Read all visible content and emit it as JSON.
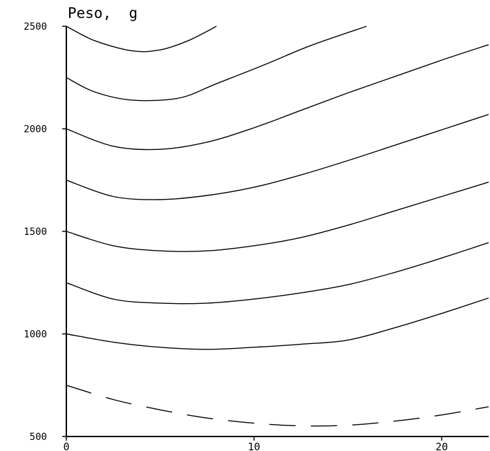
{
  "chart_data": {
    "type": "line",
    "title": "",
    "ylabel": "Peso,  g",
    "xlabel": "",
    "xlim": [
      0,
      22.5
    ],
    "ylim": [
      500,
      2500
    ],
    "x_ticks": [
      0,
      10,
      20
    ],
    "x_tick_labels": [
      "0",
      "10",
      "20"
    ],
    "y_ticks": [
      500,
      1000,
      1500,
      2000,
      2500
    ],
    "y_tick_labels": [
      "500",
      "1000",
      "1500",
      "2000",
      "2500"
    ],
    "grid": false,
    "legend": "none",
    "line_color": "#000000",
    "series": [
      {
        "style": "dashed",
        "points": [
          [
            0,
            750
          ],
          [
            2.5,
            680
          ],
          [
            5,
            630
          ],
          [
            7.5,
            590
          ],
          [
            10,
            565
          ],
          [
            12.5,
            552
          ],
          [
            15,
            555
          ],
          [
            17.5,
            575
          ],
          [
            20,
            605
          ],
          [
            22.5,
            645
          ]
        ]
      },
      {
        "style": "solid",
        "points": [
          [
            0,
            1000
          ],
          [
            2.5,
            960
          ],
          [
            5,
            935
          ],
          [
            7.5,
            925
          ],
          [
            10,
            935
          ],
          [
            12.5,
            950
          ],
          [
            15,
            970
          ],
          [
            17.5,
            1030
          ],
          [
            20,
            1100
          ],
          [
            22.5,
            1175
          ]
        ]
      },
      {
        "style": "solid",
        "points": [
          [
            0,
            1250
          ],
          [
            2.5,
            1170
          ],
          [
            5,
            1150
          ],
          [
            7.5,
            1150
          ],
          [
            10,
            1170
          ],
          [
            12.5,
            1200
          ],
          [
            15,
            1240
          ],
          [
            17.5,
            1300
          ],
          [
            20,
            1370
          ],
          [
            22.5,
            1445
          ]
        ]
      },
      {
        "style": "solid",
        "points": [
          [
            0,
            1500
          ],
          [
            2.5,
            1430
          ],
          [
            5,
            1405
          ],
          [
            7.5,
            1405
          ],
          [
            10,
            1430
          ],
          [
            12.5,
            1470
          ],
          [
            15,
            1530
          ],
          [
            17.5,
            1600
          ],
          [
            20,
            1670
          ],
          [
            22.5,
            1740
          ]
        ]
      },
      {
        "style": "solid",
        "points": [
          [
            0,
            1750
          ],
          [
            2.5,
            1670
          ],
          [
            5,
            1655
          ],
          [
            7.5,
            1675
          ],
          [
            10,
            1715
          ],
          [
            12.5,
            1775
          ],
          [
            15,
            1845
          ],
          [
            17.5,
            1920
          ],
          [
            20,
            1995
          ],
          [
            22.5,
            2070
          ]
        ]
      },
      {
        "style": "solid",
        "points": [
          [
            0,
            2000
          ],
          [
            2.5,
            1915
          ],
          [
            5,
            1900
          ],
          [
            7.5,
            1935
          ],
          [
            10,
            2005
          ],
          [
            12.5,
            2090
          ],
          [
            15,
            2175
          ],
          [
            17.5,
            2255
          ],
          [
            20,
            2335
          ],
          [
            22.5,
            2410
          ]
        ]
      },
      {
        "style": "solid",
        "points": [
          [
            0,
            2250
          ],
          [
            1.5,
            2180
          ],
          [
            3.5,
            2140
          ],
          [
            6,
            2150
          ],
          [
            8,
            2220
          ],
          [
            10.5,
            2310
          ],
          [
            13,
            2405
          ],
          [
            16,
            2500
          ]
        ]
      },
      {
        "style": "solid",
        "points": [
          [
            0,
            2500
          ],
          [
            1.5,
            2430
          ],
          [
            3.5,
            2380
          ],
          [
            5,
            2385
          ],
          [
            6.5,
            2430
          ],
          [
            8,
            2500
          ]
        ]
      }
    ]
  }
}
